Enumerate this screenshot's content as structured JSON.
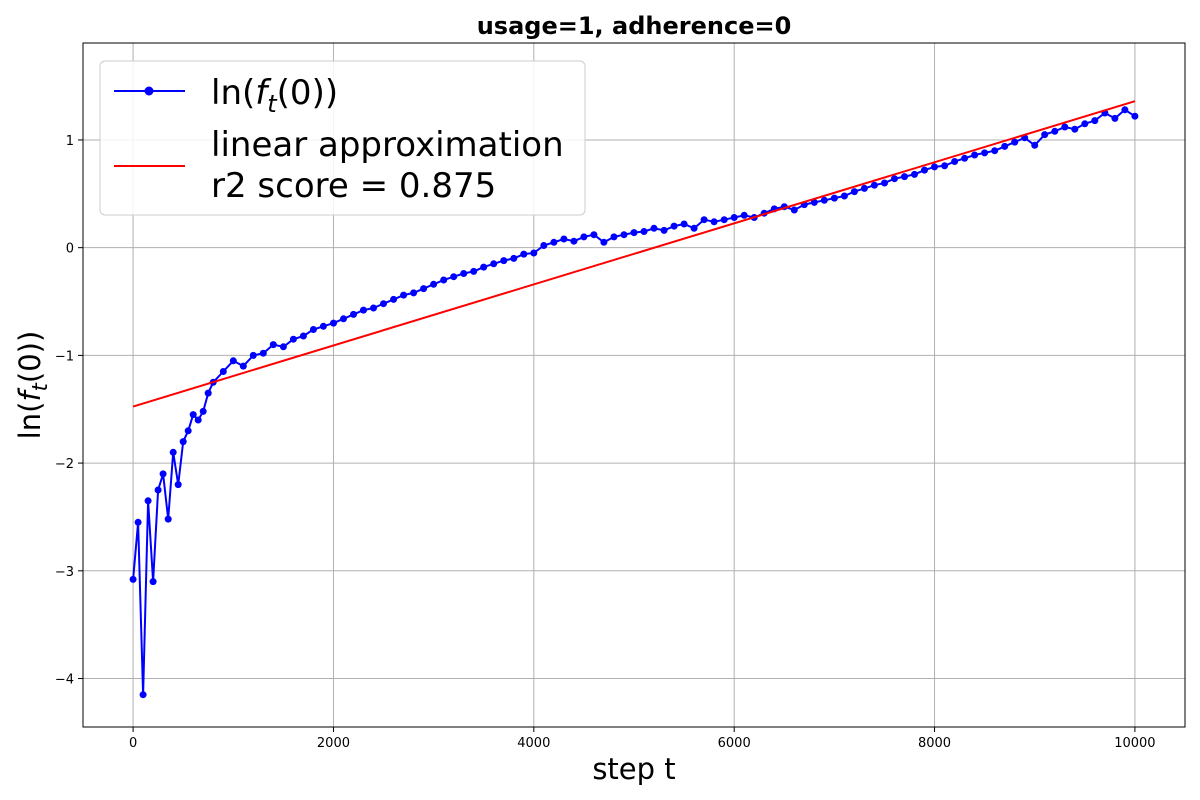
{
  "chart_data": {
    "type": "line",
    "title": "usage=1, adherence=0",
    "xlabel": "step t",
    "ylabel_prefix": "ln(",
    "ylabel_func": "f",
    "ylabel_sub": "t",
    "ylabel_suffix": "(0))",
    "xlim": [
      -500,
      10500
    ],
    "ylim": [
      -4.45,
      1.9
    ],
    "xticks": [
      0,
      2000,
      4000,
      6000,
      8000,
      10000
    ],
    "yticks": [
      -4,
      -3,
      -2,
      -1,
      0,
      1
    ],
    "grid": true,
    "legend_position": "upper-left",
    "colors": {
      "series": "#0000ff",
      "fit": "#ff0000",
      "grid": "#b0b0b0"
    },
    "series": [
      {
        "name_prefix": "ln(",
        "name_func": "f",
        "name_sub": "t",
        "name_suffix": "(0))",
        "marker": "circle",
        "x": [
          0,
          50,
          100,
          150,
          200,
          250,
          300,
          350,
          400,
          450,
          500,
          550,
          600,
          650,
          700,
          750,
          800,
          900,
          1000,
          1100,
          1200,
          1300,
          1400,
          1500,
          1600,
          1700,
          1800,
          1900,
          2000,
          2100,
          2200,
          2300,
          2400,
          2500,
          2600,
          2700,
          2800,
          2900,
          3000,
          3100,
          3200,
          3300,
          3400,
          3500,
          3600,
          3700,
          3800,
          3900,
          4000,
          4100,
          4200,
          4300,
          4400,
          4500,
          4600,
          4700,
          4800,
          4900,
          5000,
          5100,
          5200,
          5300,
          5400,
          5500,
          5600,
          5700,
          5800,
          5900,
          6000,
          6100,
          6200,
          6300,
          6400,
          6500,
          6600,
          6700,
          6800,
          6900,
          7000,
          7100,
          7200,
          7300,
          7400,
          7500,
          7600,
          7700,
          7800,
          7900,
          8000,
          8100,
          8200,
          8300,
          8400,
          8500,
          8600,
          8700,
          8800,
          8900,
          9000,
          9100,
          9200,
          9300,
          9400,
          9500,
          9600,
          9700,
          9800,
          9900,
          10000
        ],
        "y": [
          -3.08,
          -2.55,
          -4.15,
          -2.35,
          -3.1,
          -2.25,
          -2.1,
          -2.52,
          -1.9,
          -2.2,
          -1.8,
          -1.7,
          -1.55,
          -1.6,
          -1.52,
          -1.35,
          -1.25,
          -1.15,
          -1.05,
          -1.1,
          -1.0,
          -0.98,
          -0.9,
          -0.92,
          -0.85,
          -0.82,
          -0.76,
          -0.73,
          -0.7,
          -0.66,
          -0.62,
          -0.58,
          -0.56,
          -0.52,
          -0.48,
          -0.44,
          -0.42,
          -0.38,
          -0.34,
          -0.3,
          -0.27,
          -0.24,
          -0.22,
          -0.18,
          -0.15,
          -0.12,
          -0.1,
          -0.06,
          -0.05,
          0.02,
          0.05,
          0.08,
          0.06,
          0.1,
          0.12,
          0.05,
          0.1,
          0.12,
          0.14,
          0.15,
          0.18,
          0.16,
          0.2,
          0.22,
          0.18,
          0.26,
          0.24,
          0.26,
          0.28,
          0.3,
          0.28,
          0.32,
          0.36,
          0.38,
          0.35,
          0.4,
          0.42,
          0.44,
          0.46,
          0.48,
          0.52,
          0.55,
          0.58,
          0.6,
          0.64,
          0.66,
          0.68,
          0.72,
          0.75,
          0.76,
          0.8,
          0.83,
          0.86,
          0.88,
          0.9,
          0.94,
          0.98,
          1.02,
          0.95,
          1.05,
          1.08,
          1.12,
          1.1,
          1.15,
          1.18,
          1.25,
          1.2,
          1.28,
          1.22
        ]
      },
      {
        "name_line1": "linear approximation",
        "name_line2": "r2 score =  0.875",
        "x": [
          0,
          10000
        ],
        "y": [
          -1.475,
          1.36
        ]
      }
    ]
  }
}
